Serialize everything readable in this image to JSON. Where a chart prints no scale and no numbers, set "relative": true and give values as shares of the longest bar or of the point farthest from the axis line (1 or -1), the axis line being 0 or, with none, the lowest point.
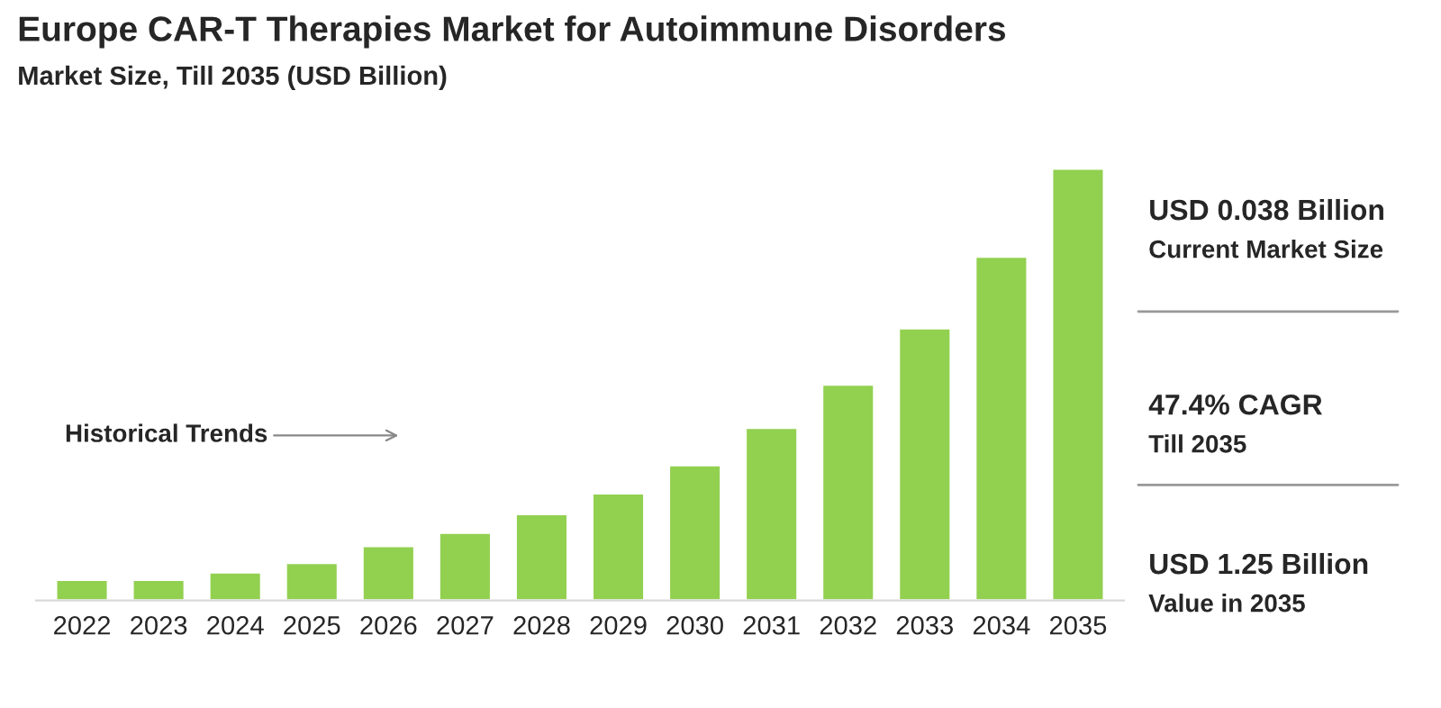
{
  "chart_data": {
    "type": "bar",
    "title": "Europe CAR-T Therapies Market for Autoimmune Disorders",
    "subtitle": "Market Size, Till 2035 (USD Billion)",
    "categories": [
      "2022",
      "2023",
      "2024",
      "2025",
      "2026",
      "2027",
      "2028",
      "2029",
      "2030",
      "2031",
      "2032",
      "2033",
      "2034",
      "2035"
    ],
    "values": [
      0.048,
      0.048,
      0.065,
      0.087,
      0.126,
      0.157,
      0.2,
      0.248,
      0.313,
      0.4,
      0.5,
      0.63,
      0.796,
      1
    ],
    "color": "#92d050",
    "relative": true,
    "grid": false,
    "legend": false,
    "annotations": [
      "Historical Trends",
      "USD 0.038 Billion",
      "Current Market Size",
      "47.4% CAGR",
      "Till 2035",
      "USD 1.25 Billion",
      "Value in 2035"
    ]
  }
}
